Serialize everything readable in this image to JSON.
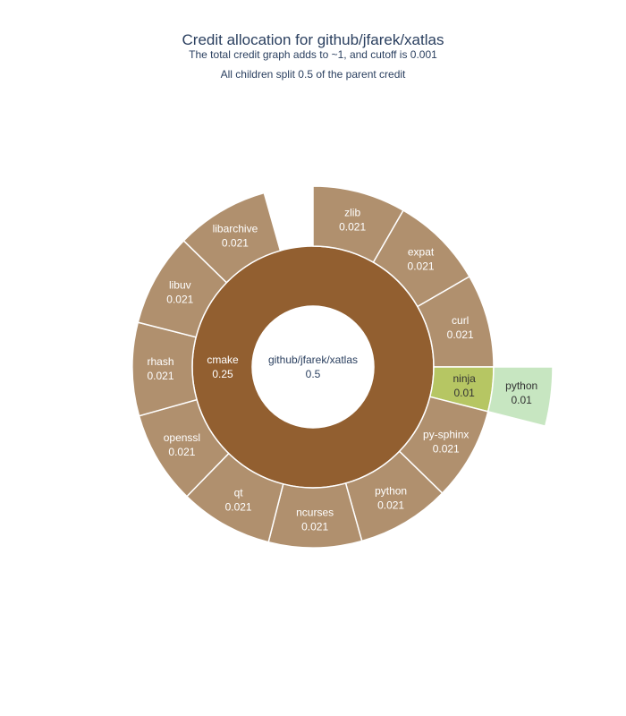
{
  "chart_data": {
    "type": "sunburst",
    "title": "Credit allocation for github/jfarek/xatlas",
    "subtitle_lines": [
      "The total credit graph adds to ~1, and cutoff is 0.001",
      "All children split 0.5 of the parent credit"
    ],
    "root": {
      "label": "github/jfarek/xatlas",
      "value": 0.5
    },
    "level1": [
      {
        "label": "cmake",
        "value": 0.25,
        "color": "#925f30"
      }
    ],
    "level2": [
      {
        "label": "zlib",
        "value": 0.021,
        "color": "#b0906e"
      },
      {
        "label": "expat",
        "value": 0.021,
        "color": "#b0906e"
      },
      {
        "label": "curl",
        "value": 0.021,
        "color": "#b0906e"
      },
      {
        "label": "ninja",
        "value": 0.01,
        "color": "#b6c663"
      },
      {
        "label": "py-sphinx",
        "value": 0.021,
        "color": "#b0906e"
      },
      {
        "label": "python",
        "value": 0.021,
        "color": "#b0906e"
      },
      {
        "label": "ncurses",
        "value": 0.021,
        "color": "#b0906e"
      },
      {
        "label": "qt",
        "value": 0.021,
        "color": "#b0906e"
      },
      {
        "label": "openssl",
        "value": 0.021,
        "color": "#b0906e"
      },
      {
        "label": "rhash",
        "value": 0.021,
        "color": "#b0906e"
      },
      {
        "label": "libuv",
        "value": 0.021,
        "color": "#b0906e"
      },
      {
        "label": "libarchive",
        "value": 0.021,
        "color": "#b0906e"
      }
    ],
    "level3": [
      {
        "label": "python",
        "value": 0.01,
        "color": "#c7e6c1",
        "parent": "ninja"
      }
    ],
    "value_format": "0.###"
  }
}
